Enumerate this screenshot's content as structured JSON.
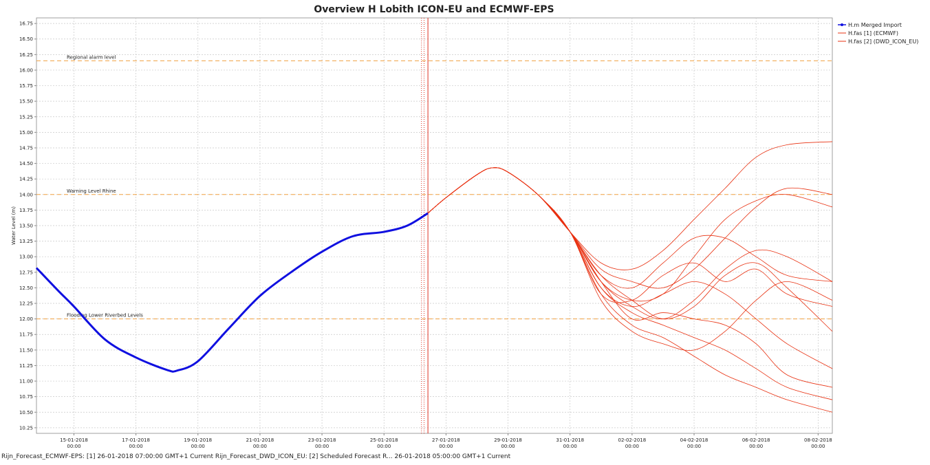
{
  "chart_data": {
    "type": "line",
    "title": "Overview H Lobith ICON-EU and ECMWF-EPS",
    "y_label": "Water Level (m)",
    "footer": "Rijn_Forecast_ECMWF-EPS: [1] 26-01-2018 07:00:00 GMT+1 Current Rijn_Forecast_DWD_ICON_EU: [2] Scheduled Forecast R... 26-01-2018 05:00:00 GMT+1 Current",
    "xlim": [
      "2018-01-13T19:00",
      "2018-02-08T11:00"
    ],
    "ylim": [
      10.16,
      16.84
    ],
    "grid": true,
    "legend": "right",
    "xticks": [
      {
        "value": "2018-01-15T00:00",
        "label": "15-01-2018",
        "time": "00:00"
      },
      {
        "value": "2018-01-17T00:00",
        "label": "17-01-2018",
        "time": "00:00"
      },
      {
        "value": "2018-01-19T00:00",
        "label": "19-01-2018",
        "time": "00:00"
      },
      {
        "value": "2018-01-21T00:00",
        "label": "21-01-2018",
        "time": "00:00"
      },
      {
        "value": "2018-01-23T00:00",
        "label": "23-01-2018",
        "time": "00:00"
      },
      {
        "value": "2018-01-25T00:00",
        "label": "25-01-2018",
        "time": "00:00"
      },
      {
        "value": "2018-01-27T00:00",
        "label": "27-01-2018",
        "time": "00:00"
      },
      {
        "value": "2018-01-29T00:00",
        "label": "29-01-2018",
        "time": "00:00"
      },
      {
        "value": "2018-01-31T00:00",
        "label": "31-01-2018",
        "time": "00:00"
      },
      {
        "value": "2018-02-02T00:00",
        "label": "02-02-2018",
        "time": "00:00"
      },
      {
        "value": "2018-02-04T00:00",
        "label": "04-02-2018",
        "time": "00:00"
      },
      {
        "value": "2018-02-06T00:00",
        "label": "06-02-2018",
        "time": "00:00"
      },
      {
        "value": "2018-02-08T00:00",
        "label": "08-02-2018",
        "time": "00:00"
      }
    ],
    "yticks": [
      16.75,
      {
        "value": 16.5,
        "label": "16.50"
      },
      16.25,
      {
        "value": 16,
        "label": "16.00"
      },
      15.75,
      {
        "value": 15.5,
        "label": "15.50"
      },
      15.25,
      {
        "value": 15,
        "label": "15.00"
      },
      14.75,
      {
        "value": 14.5,
        "label": "14.50"
      },
      14.25,
      {
        "value": 14,
        "label": "14.00"
      },
      13.75,
      {
        "value": 13.5,
        "label": "13.50"
      },
      13.25,
      {
        "value": 13,
        "label": "13.00"
      },
      12.75,
      {
        "value": 12.5,
        "label": "12.50"
      },
      12.25,
      {
        "value": 12,
        "label": "12.00"
      },
      11.75,
      {
        "value": 11.5,
        "label": "11.50"
      },
      11.25,
      {
        "value": 11,
        "label": "11.00"
      },
      10.75,
      {
        "value": 10.5,
        "label": "10.50"
      },
      10.25
    ],
    "thresholds": [
      {
        "label": "Regional alarm level",
        "value": 16.15
      },
      {
        "label": "Warning Level Rhine",
        "value": 14.0
      },
      {
        "label": "Flooding Lower Riverbed Levels",
        "value": 12.0
      }
    ],
    "threshold_color": "#f0a040",
    "markers": [
      {
        "x": "2018-01-26T05:00",
        "style": "dotted"
      },
      {
        "x": "2018-01-26T07:00",
        "style": "dotted"
      },
      {
        "x": "2018-01-26T10:00",
        "style": "solid"
      }
    ],
    "marker_color": "#e03020",
    "series": [
      {
        "name": "H.m Merged Import",
        "color": "#1010e0",
        "width": 3,
        "x": [
          "2018-01-13T19:00",
          "2018-01-14T12:00",
          "2018-01-15T00:00",
          "2018-01-16T00:00",
          "2018-01-17T00:00",
          "2018-01-18T00:00",
          "2018-01-18T08:00",
          "2018-01-19T00:00",
          "2018-01-20T00:00",
          "2018-01-21T00:00",
          "2018-01-22T00:00",
          "2018-01-23T00:00",
          "2018-01-24T00:00",
          "2018-01-25T00:00",
          "2018-01-25T18:00",
          "2018-01-26T10:00"
        ],
        "values": [
          12.82,
          12.45,
          12.2,
          11.67,
          11.38,
          11.18,
          11.17,
          11.32,
          11.85,
          12.37,
          12.75,
          13.08,
          13.33,
          13.4,
          13.5,
          13.7
        ]
      },
      {
        "name": "H.fas [1] (ECMWF)",
        "color": "#e83010",
        "width": 0.8,
        "x": [
          "2018-01-26T10:00",
          "2018-01-27T00:00",
          "2018-01-28T00:00",
          "2018-01-28T12:00",
          "2018-01-29T00:00",
          "2018-01-30T00:00",
          "2018-01-31T00:00",
          "2018-02-01T00:00",
          "2018-02-02T00:00",
          "2018-02-03T00:00",
          "2018-02-04T00:00",
          "2018-02-05T00:00",
          "2018-02-06T00:00",
          "2018-02-07T00:00",
          "2018-02-08T11:00"
        ],
        "members": [
          [
            13.7,
            13.95,
            14.32,
            14.43,
            14.36,
            13.98,
            13.4,
            12.9,
            12.8,
            13.1,
            13.6,
            14.1,
            14.6,
            14.8,
            14.85
          ],
          [
            13.7,
            13.95,
            14.32,
            14.43,
            14.36,
            13.98,
            13.4,
            12.6,
            12.3,
            12.4,
            13.0,
            13.6,
            13.9,
            14.0,
            13.8
          ],
          [
            13.7,
            13.95,
            14.32,
            14.43,
            14.36,
            13.98,
            13.4,
            12.5,
            12.1,
            11.9,
            11.7,
            11.5,
            11.2,
            10.9,
            10.7
          ],
          [
            13.7,
            13.95,
            14.32,
            14.43,
            14.36,
            13.98,
            13.4,
            12.7,
            12.5,
            12.9,
            13.3,
            13.3,
            13.0,
            12.7,
            12.6
          ],
          [
            13.7,
            13.95,
            14.32,
            14.43,
            14.36,
            13.98,
            13.4,
            12.3,
            11.8,
            11.6,
            11.5,
            11.8,
            12.3,
            12.6,
            12.3
          ],
          [
            13.7,
            13.95,
            14.32,
            14.43,
            14.36,
            13.98,
            13.4,
            12.6,
            12.2,
            12.0,
            12.3,
            12.8,
            13.1,
            13.0,
            12.6
          ],
          [
            13.7,
            13.95,
            14.32,
            14.43,
            14.36,
            13.98,
            13.4,
            12.4,
            11.9,
            11.7,
            11.4,
            11.1,
            10.9,
            10.7,
            10.5
          ],
          [
            13.7,
            13.95,
            14.32,
            14.43,
            14.36,
            13.98,
            13.4,
            12.8,
            12.6,
            12.5,
            12.8,
            13.3,
            13.8,
            14.1,
            14.0
          ],
          [
            13.7,
            13.95,
            14.32,
            14.43,
            14.36,
            13.98,
            13.4,
            12.5,
            12.2,
            12.4,
            12.6,
            12.4,
            12.0,
            11.6,
            11.2
          ],
          [
            13.7,
            13.95,
            14.32,
            14.43,
            14.36,
            13.98,
            13.4,
            12.7,
            12.3,
            12.0,
            12.2,
            12.7,
            12.9,
            12.5,
            11.8
          ],
          [
            13.7,
            13.95,
            14.32,
            14.43,
            14.36,
            13.98,
            13.4,
            12.6,
            12.0,
            12.1,
            12.0,
            11.9,
            11.6,
            11.1,
            10.9
          ],
          [
            13.7,
            13.95,
            14.32,
            14.43,
            14.36,
            13.98,
            13.4,
            12.4,
            12.3,
            12.7,
            12.9,
            12.6,
            12.8,
            12.4,
            12.2
          ]
        ]
      },
      {
        "name": "H.fas [2] (DWD_ICON_EU)",
        "color": "#e83010",
        "width": 0.8,
        "x": [
          "2018-01-26T10:00",
          "2018-01-27T00:00",
          "2018-01-28T00:00",
          "2018-01-28T12:00",
          "2018-01-29T00:00",
          "2018-01-30T00:00",
          "2018-01-31T00:00"
        ],
        "members": [
          [
            13.7,
            13.95,
            14.32,
            14.43,
            14.36,
            13.98,
            13.4
          ]
        ]
      }
    ]
  }
}
